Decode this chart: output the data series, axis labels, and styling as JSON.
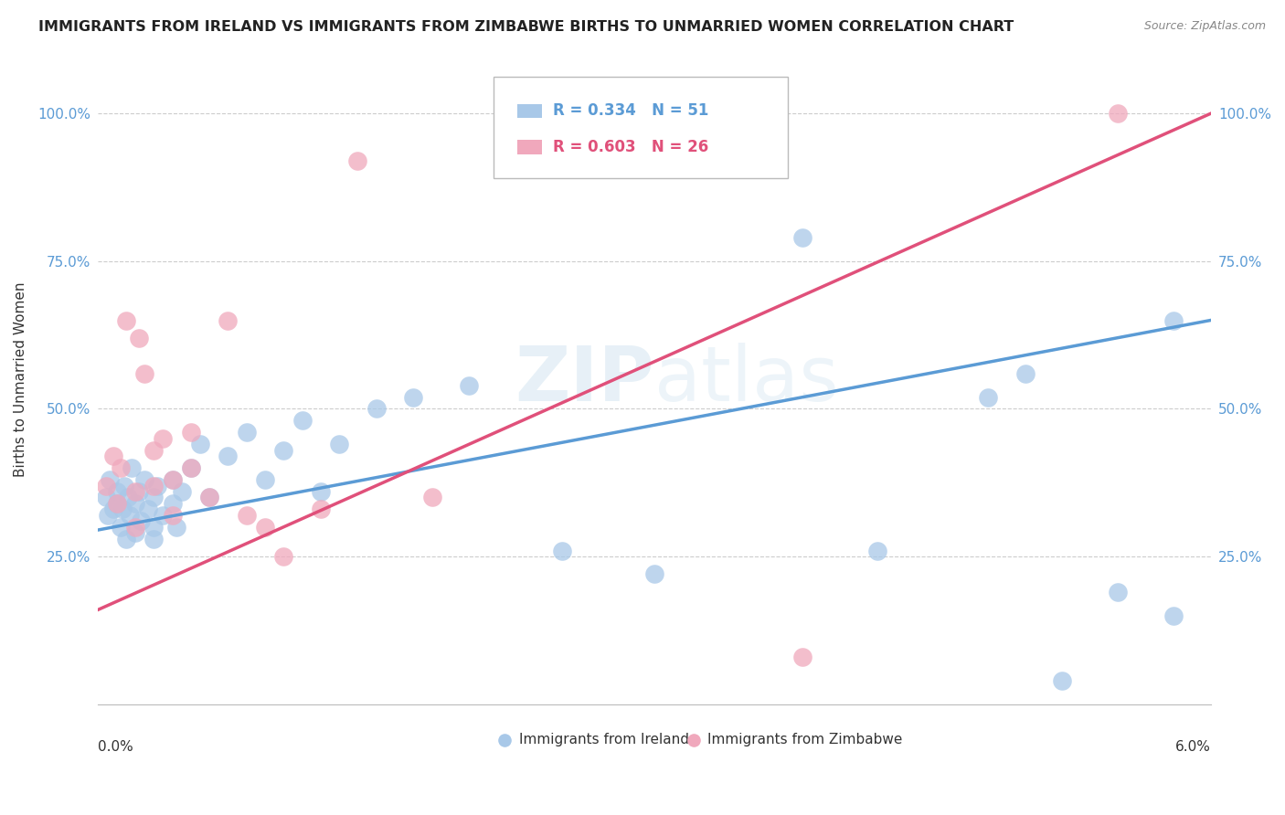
{
  "title": "IMMIGRANTS FROM IRELAND VS IMMIGRANTS FROM ZIMBABWE BIRTHS TO UNMARRIED WOMEN CORRELATION CHART",
  "source": "Source: ZipAtlas.com",
  "ylabel": "Births to Unmarried Women",
  "xlim": [
    0.0,
    0.06
  ],
  "ylim": [
    0.0,
    1.1
  ],
  "legend_ireland": "Immigrants from Ireland",
  "legend_zimbabwe": "Immigrants from Zimbabwe",
  "R_ireland": 0.334,
  "N_ireland": 51,
  "R_zimbabwe": 0.603,
  "N_zimbabwe": 26,
  "color_ireland": "#a8c8e8",
  "color_zimbabwe": "#f0a8bc",
  "line_color_ireland": "#5b9bd5",
  "line_color_zimbabwe": "#e0507a",
  "ytick_positions": [
    0.25,
    0.5,
    0.75,
    1.0
  ],
  "ytick_labels": [
    "25.0%",
    "50.0%",
    "75.0%",
    "100.0%"
  ],
  "watermark_text": "ZIPatlas",
  "ireland_x": [
    0.0004,
    0.0005,
    0.0006,
    0.0008,
    0.001,
    0.001,
    0.0012,
    0.0013,
    0.0014,
    0.0015,
    0.0016,
    0.0017,
    0.0018,
    0.002,
    0.002,
    0.0022,
    0.0023,
    0.0025,
    0.0027,
    0.003,
    0.003,
    0.003,
    0.0032,
    0.0035,
    0.004,
    0.004,
    0.0042,
    0.0045,
    0.005,
    0.0055,
    0.006,
    0.007,
    0.008,
    0.009,
    0.01,
    0.011,
    0.012,
    0.013,
    0.015,
    0.017,
    0.02,
    0.025,
    0.03,
    0.038,
    0.042,
    0.048,
    0.05,
    0.052,
    0.055,
    0.058,
    0.058
  ],
  "ireland_y": [
    0.35,
    0.32,
    0.38,
    0.33,
    0.36,
    0.34,
    0.3,
    0.33,
    0.37,
    0.28,
    0.35,
    0.32,
    0.4,
    0.29,
    0.34,
    0.36,
    0.31,
    0.38,
    0.33,
    0.3,
    0.35,
    0.28,
    0.37,
    0.32,
    0.34,
    0.38,
    0.3,
    0.36,
    0.4,
    0.44,
    0.35,
    0.42,
    0.46,
    0.38,
    0.43,
    0.48,
    0.36,
    0.44,
    0.5,
    0.52,
    0.54,
    0.26,
    0.22,
    0.79,
    0.26,
    0.52,
    0.56,
    0.04,
    0.19,
    0.15,
    0.65
  ],
  "zimbabwe_x": [
    0.0004,
    0.0008,
    0.001,
    0.0012,
    0.0015,
    0.002,
    0.002,
    0.0022,
    0.0025,
    0.003,
    0.003,
    0.0035,
    0.004,
    0.004,
    0.005,
    0.005,
    0.006,
    0.007,
    0.008,
    0.009,
    0.01,
    0.012,
    0.014,
    0.018,
    0.038,
    0.055
  ],
  "zimbabwe_y": [
    0.37,
    0.42,
    0.34,
    0.4,
    0.65,
    0.3,
    0.36,
    0.62,
    0.56,
    0.43,
    0.37,
    0.45,
    0.32,
    0.38,
    0.46,
    0.4,
    0.35,
    0.65,
    0.32,
    0.3,
    0.25,
    0.33,
    0.92,
    0.35,
    0.08,
    1.0
  ],
  "line_ireland_x0": 0.0,
  "line_ireland_y0": 0.295,
  "line_ireland_x1": 0.06,
  "line_ireland_y1": 0.65,
  "line_zimbabwe_x0": 0.0,
  "line_zimbabwe_y0": 0.16,
  "line_zimbabwe_x1": 0.06,
  "line_zimbabwe_y1": 1.0
}
